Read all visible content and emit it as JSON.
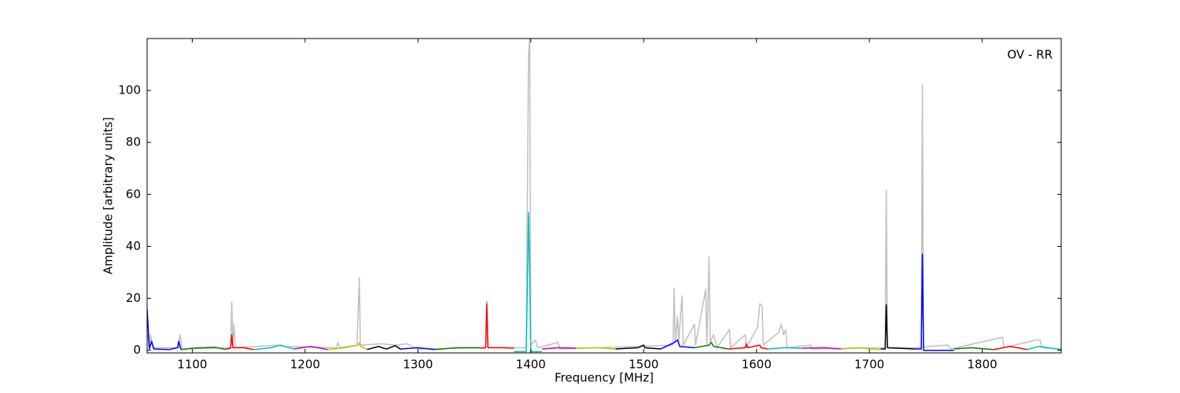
{
  "chart_data": {
    "type": "line",
    "annotation": "OV - RR",
    "x_label": "Frequency [MHz]",
    "y_label": "Amplitude [arbitrary units]",
    "xlim": [
      1060,
      1870
    ],
    "ylim": [
      -1,
      120
    ],
    "xticks": [
      1100,
      1200,
      1300,
      1400,
      1500,
      1600,
      1700,
      1800
    ],
    "yticks": [
      0,
      20,
      40,
      60,
      80,
      100
    ],
    "series": [
      {
        "color": "#bfbfbf",
        "x": [
          1060,
          1062,
          1063,
          1065,
          1088,
          1089,
          1091,
          1134,
          1135,
          1136,
          1137,
          1138,
          1176,
          1180,
          1228,
          1229,
          1231,
          1246,
          1248,
          1249,
          1268,
          1280,
          1290,
          1300,
          1360,
          1361,
          1362,
          1396,
          1398,
          1399,
          1400,
          1404,
          1406,
          1424,
          1426,
          1526,
          1527,
          1528,
          1530,
          1531,
          1534,
          1535,
          1545,
          1546,
          1555,
          1556,
          1558,
          1559,
          1562,
          1565,
          1576,
          1577,
          1590,
          1591,
          1601,
          1603,
          1605,
          1606,
          1620,
          1622,
          1624,
          1626,
          1627,
          1648,
          1649,
          1714,
          1715,
          1716,
          1746,
          1747,
          1748,
          1752,
          1770,
          1772,
          1818,
          1819,
          1848,
          1851,
          1853,
          1870
        ],
        "values": [
          8,
          0.5,
          6,
          1,
          1,
          6,
          0.5,
          1,
          18.5,
          2,
          10,
          1,
          2,
          1.5,
          1,
          3,
          1,
          2,
          28,
          2,
          2.5,
          2,
          2.5,
          0.5,
          1,
          19,
          1,
          1,
          114,
          120,
          2,
          4,
          1,
          3,
          0.5,
          2,
          24,
          3,
          13,
          3,
          21,
          2,
          10,
          2,
          23.5,
          2,
          36,
          3,
          6,
          1,
          8,
          1,
          6,
          1,
          9,
          18,
          17,
          2,
          7,
          10,
          6,
          8,
          1,
          2,
          0.5,
          1,
          61.5,
          1,
          1,
          102,
          1,
          1.5,
          2,
          0.5,
          5,
          1,
          4,
          4,
          1,
          0.5
        ]
      },
      {
        "color": "#0000ff",
        "x": [
          1060,
          1062,
          1064,
          1066,
          1080,
          1087,
          1088,
          1090
        ],
        "values": [
          16,
          0.5,
          3.5,
          0.5,
          0.3,
          1,
          3.5,
          0.3
        ]
      },
      {
        "color": "#008000",
        "x": [
          1090,
          1100,
          1120,
          1130
        ],
        "values": [
          0.3,
          0.8,
          1.2,
          0.3
        ]
      },
      {
        "color": "#ff0000",
        "x": [
          1130,
          1134,
          1135,
          1136,
          1145,
          1155
        ],
        "values": [
          0.5,
          0.8,
          6,
          1,
          1,
          0.3
        ]
      },
      {
        "color": "#00bfbf",
        "x": [
          1155,
          1170,
          1178,
          1190
        ],
        "values": [
          0.3,
          1,
          2,
          0.5
        ]
      },
      {
        "color": "#bf00bf",
        "x": [
          1190,
          1205,
          1220
        ],
        "values": [
          0.5,
          1.5,
          0.3
        ]
      },
      {
        "color": "#bfbf00",
        "x": [
          1220,
          1235,
          1247,
          1248,
          1249,
          1255
        ],
        "values": [
          0.3,
          1,
          2,
          3,
          1.5,
          0.3
        ]
      },
      {
        "color": "#000000",
        "x": [
          1255,
          1265,
          1272,
          1280,
          1285
        ],
        "values": [
          0.3,
          1.5,
          0.5,
          1.8,
          0.3
        ]
      },
      {
        "color": "#0000ff",
        "x": [
          1285,
          1300,
          1315
        ],
        "values": [
          0.5,
          1,
          0.3
        ]
      },
      {
        "color": "#008000",
        "x": [
          1315,
          1335,
          1355
        ],
        "values": [
          0.3,
          1,
          1
        ]
      },
      {
        "color": "#ff0000",
        "x": [
          1355,
          1360,
          1361,
          1362,
          1375,
          1385
        ],
        "values": [
          0.8,
          1,
          18,
          1,
          1,
          0.8
        ]
      },
      {
        "color": "#00bfbf",
        "x": [
          1385,
          1396,
          1398,
          1399,
          1400,
          1410
        ],
        "values": [
          -0.5,
          -0.5,
          53,
          30,
          -0.5,
          -0.5
        ]
      },
      {
        "color": "#bf00bf",
        "x": [
          1410,
          1425,
          1440
        ],
        "values": [
          0.5,
          1,
          0.8
        ]
      },
      {
        "color": "#bfbf00",
        "x": [
          1440,
          1460,
          1475
        ],
        "values": [
          0.8,
          1,
          0.5
        ]
      },
      {
        "color": "#000000",
        "x": [
          1475,
          1495,
          1500,
          1501,
          1515
        ],
        "values": [
          0.5,
          1,
          2,
          1,
          0.5
        ]
      },
      {
        "color": "#0000ff",
        "x": [
          1515,
          1527,
          1530,
          1532,
          1545
        ],
        "values": [
          0.5,
          3,
          4,
          1.5,
          1
        ]
      },
      {
        "color": "#008000",
        "x": [
          1545,
          1558,
          1560,
          1562,
          1575
        ],
        "values": [
          1,
          2,
          3,
          1.5,
          0.5
        ]
      },
      {
        "color": "#ff0000",
        "x": [
          1575,
          1590,
          1591,
          1592,
          1603,
          1604,
          1610
        ],
        "values": [
          0.5,
          1,
          2.5,
          1,
          2,
          1,
          0.5
        ]
      },
      {
        "color": "#00bfbf",
        "x": [
          1610,
          1625,
          1640
        ],
        "values": [
          0.5,
          1,
          0.8
        ]
      },
      {
        "color": "#bf00bf",
        "x": [
          1640,
          1660,
          1675
        ],
        "values": [
          0.8,
          1,
          0.5
        ]
      },
      {
        "color": "#bfbf00",
        "x": [
          1675,
          1690,
          1710
        ],
        "values": [
          0.5,
          1,
          0.3
        ]
      },
      {
        "color": "#000000",
        "x": [
          1710,
          1714,
          1715,
          1716,
          1740
        ],
        "values": [
          0.5,
          0.5,
          17.5,
          1,
          0.5
        ]
      },
      {
        "color": "#0000ff",
        "x": [
          1740,
          1746,
          1747,
          1748,
          1775
        ],
        "values": [
          0.5,
          0.5,
          37,
          0,
          0
        ]
      },
      {
        "color": "#008000",
        "x": [
          1775,
          1790,
          1810
        ],
        "values": [
          0.5,
          1,
          0.3
        ]
      },
      {
        "color": "#ff0000",
        "x": [
          1810,
          1825,
          1840
        ],
        "values": [
          0.3,
          1.5,
          0.3
        ]
      },
      {
        "color": "#00bfbf",
        "x": [
          1840,
          1850,
          1870
        ],
        "values": [
          0.3,
          1.5,
          0.3
        ]
      }
    ]
  }
}
